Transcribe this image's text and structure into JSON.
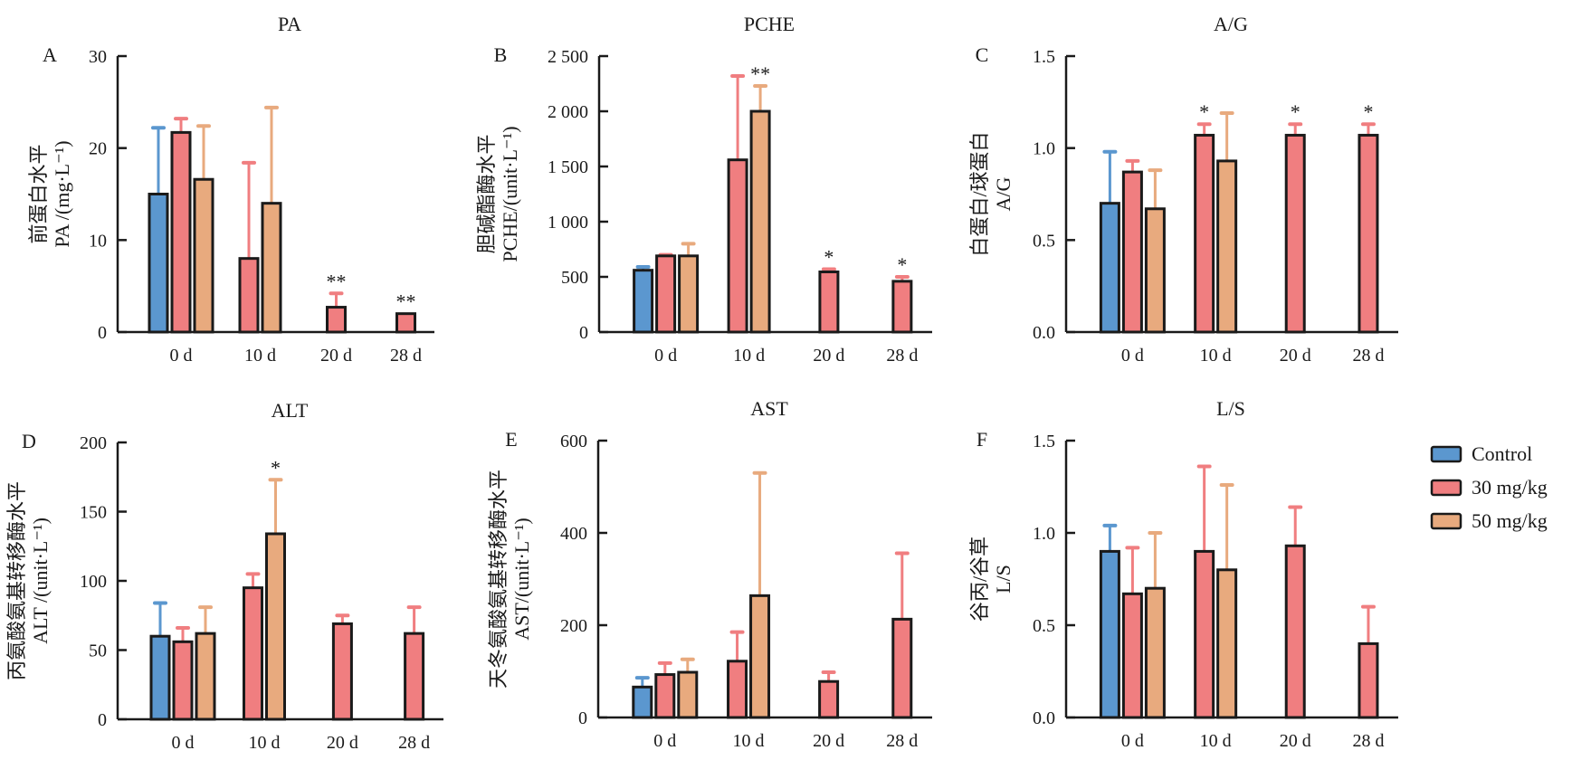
{
  "legend": {
    "placement": "right-middle",
    "items": [
      {
        "label": "Control",
        "color": "#5b97cf"
      },
      {
        "label": "30 mg/kg",
        "color": "#f07e80"
      },
      {
        "label": "50 mg/kg",
        "color": "#e8aa7e"
      }
    ]
  },
  "chart_data": [
    {
      "type": "bar",
      "panel": "A",
      "title": "PA",
      "ylabel_cn": "前蛋白水平",
      "ylabel": "PA /(mg·L⁻¹)",
      "categories": [
        "0 d",
        "10 d",
        "20 d",
        "28 d"
      ],
      "ylim": [
        0,
        30
      ],
      "yticks": [
        0,
        10,
        20,
        30
      ],
      "ytick_labels": [
        "0",
        "10",
        "20",
        "30"
      ],
      "series": [
        {
          "name": "Control",
          "values": [
            15,
            null,
            null,
            null
          ],
          "errors": [
            7.2,
            null,
            null,
            null
          ],
          "sig": [
            "",
            "",
            "",
            ""
          ]
        },
        {
          "name": "30 mg/kg",
          "values": [
            21.7,
            8,
            2.7,
            2
          ],
          "errors": [
            1.5,
            10.4,
            1.5,
            0
          ],
          "sig": [
            "",
            "",
            "**",
            "**"
          ]
        },
        {
          "name": "50 mg/kg",
          "values": [
            16.6,
            14,
            null,
            null
          ],
          "errors": [
            5.8,
            10.4,
            null,
            null
          ],
          "sig": [
            "",
            "",
            "",
            ""
          ]
        }
      ]
    },
    {
      "type": "bar",
      "panel": "B",
      "title": "PCHE",
      "ylabel_cn": "胆碱酯酶水平",
      "ylabel": "PCHE/(unit·L⁻¹)",
      "categories": [
        "0 d",
        "10 d",
        "20 d",
        "28 d"
      ],
      "ylim": [
        0,
        2500
      ],
      "yticks": [
        0,
        500,
        1000,
        1500,
        2000,
        2500
      ],
      "ytick_labels": [
        "0",
        "500",
        "1 000",
        "1 500",
        "2 000",
        "2 500"
      ],
      "series": [
        {
          "name": "Control",
          "values": [
            560,
            null,
            null,
            null
          ],
          "errors": [
            30,
            null,
            null,
            null
          ],
          "sig": [
            "",
            "",
            "",
            ""
          ]
        },
        {
          "name": "30 mg/kg",
          "values": [
            690,
            1560,
            545,
            460
          ],
          "errors": [
            10,
            760,
            25,
            40
          ],
          "sig": [
            "",
            "",
            "*",
            "*"
          ]
        },
        {
          "name": "50 mg/kg",
          "values": [
            690,
            2000,
            null,
            null
          ],
          "errors": [
            110,
            230,
            null,
            null
          ],
          "sig": [
            "",
            "**",
            "",
            ""
          ]
        }
      ]
    },
    {
      "type": "bar",
      "panel": "C",
      "title": "A/G",
      "ylabel_cn": "白蛋白/球蛋白",
      "ylabel": "A/G",
      "categories": [
        "0 d",
        "10 d",
        "20 d",
        "28 d"
      ],
      "ylim": [
        0,
        1.5
      ],
      "yticks": [
        0,
        0.5,
        1.0,
        1.5
      ],
      "ytick_labels": [
        "0.0",
        "0.5",
        "1.0",
        "1.5"
      ],
      "series": [
        {
          "name": "Control",
          "values": [
            0.7,
            null,
            null,
            null
          ],
          "errors": [
            0.28,
            null,
            null,
            null
          ],
          "sig": [
            "",
            "",
            "",
            ""
          ]
        },
        {
          "name": "30 mg/kg",
          "values": [
            0.87,
            1.07,
            1.07,
            1.07
          ],
          "errors": [
            0.06,
            0.06,
            0.06,
            0.06
          ],
          "sig": [
            "",
            "*",
            "*",
            "*"
          ]
        },
        {
          "name": "50 mg/kg",
          "values": [
            0.67,
            0.93,
            null,
            null
          ],
          "errors": [
            0.21,
            0.26,
            null,
            null
          ],
          "sig": [
            "",
            "",
            "",
            ""
          ]
        }
      ]
    },
    {
      "type": "bar",
      "panel": "D",
      "title": "ALT",
      "ylabel_cn": "丙氨酸氨基转移酶水平",
      "ylabel": "ALT /(unit·L⁻¹)",
      "categories": [
        "0 d",
        "10 d",
        "20 d",
        "28 d"
      ],
      "ylim": [
        0,
        200
      ],
      "yticks": [
        0,
        50,
        100,
        150,
        200
      ],
      "ytick_labels": [
        "0",
        "50",
        "100",
        "150",
        "200"
      ],
      "series": [
        {
          "name": "Control",
          "values": [
            60,
            null,
            null,
            null
          ],
          "errors": [
            24,
            null,
            null,
            null
          ],
          "sig": [
            "",
            "",
            "",
            ""
          ]
        },
        {
          "name": "30 mg/kg",
          "values": [
            56,
            95,
            69,
            62
          ],
          "errors": [
            10,
            10,
            6,
            19
          ],
          "sig": [
            "",
            "",
            "",
            ""
          ]
        },
        {
          "name": "50 mg/kg",
          "values": [
            62,
            134,
            null,
            null
          ],
          "errors": [
            19,
            39,
            null,
            null
          ],
          "sig": [
            "",
            "*",
            "",
            ""
          ]
        }
      ]
    },
    {
      "type": "bar",
      "panel": "E",
      "title": "AST",
      "ylabel_cn": "天冬氨酸氨基转移酶水平",
      "ylabel": "AST/(unit·L⁻¹)",
      "categories": [
        "0 d",
        "10 d",
        "20 d",
        "28 d"
      ],
      "ylim": [
        0,
        600
      ],
      "yticks": [
        0,
        200,
        400,
        600
      ],
      "ytick_labels": [
        "0",
        "200",
        "400",
        "600"
      ],
      "series": [
        {
          "name": "Control",
          "values": [
            66,
            null,
            null,
            null
          ],
          "errors": [
            20,
            null,
            null,
            null
          ],
          "sig": [
            "",
            "",
            "",
            ""
          ]
        },
        {
          "name": "30 mg/kg",
          "values": [
            93,
            122,
            78,
            213
          ],
          "errors": [
            25,
            63,
            20,
            143
          ],
          "sig": [
            "",
            "",
            "",
            ""
          ]
        },
        {
          "name": "50 mg/kg",
          "values": [
            98,
            264,
            null,
            null
          ],
          "errors": [
            28,
            266,
            null,
            null
          ],
          "sig": [
            "",
            "",
            "",
            ""
          ]
        }
      ]
    },
    {
      "type": "bar",
      "panel": "F",
      "title": "L/S",
      "ylabel_cn": "谷丙/谷草",
      "ylabel": "L/S",
      "categories": [
        "0 d",
        "10 d",
        "20 d",
        "28 d"
      ],
      "ylim": [
        0,
        1.5
      ],
      "yticks": [
        0,
        0.5,
        1.0,
        1.5
      ],
      "ytick_labels": [
        "0.0",
        "0.5",
        "1.0",
        "1.5"
      ],
      "series": [
        {
          "name": "Control",
          "values": [
            0.9,
            null,
            null,
            null
          ],
          "errors": [
            0.14,
            null,
            null,
            null
          ],
          "sig": [
            "",
            "",
            "",
            ""
          ]
        },
        {
          "name": "30 mg/kg",
          "values": [
            0.67,
            0.9,
            0.93,
            0.4
          ],
          "errors": [
            0.25,
            0.46,
            0.21,
            0.2
          ],
          "sig": [
            "",
            "",
            "",
            ""
          ]
        },
        {
          "name": "50 mg/kg",
          "values": [
            0.7,
            0.8,
            null,
            null
          ],
          "errors": [
            0.3,
            0.46,
            null,
            null
          ],
          "sig": [
            "",
            "",
            "",
            ""
          ]
        }
      ]
    }
  ]
}
